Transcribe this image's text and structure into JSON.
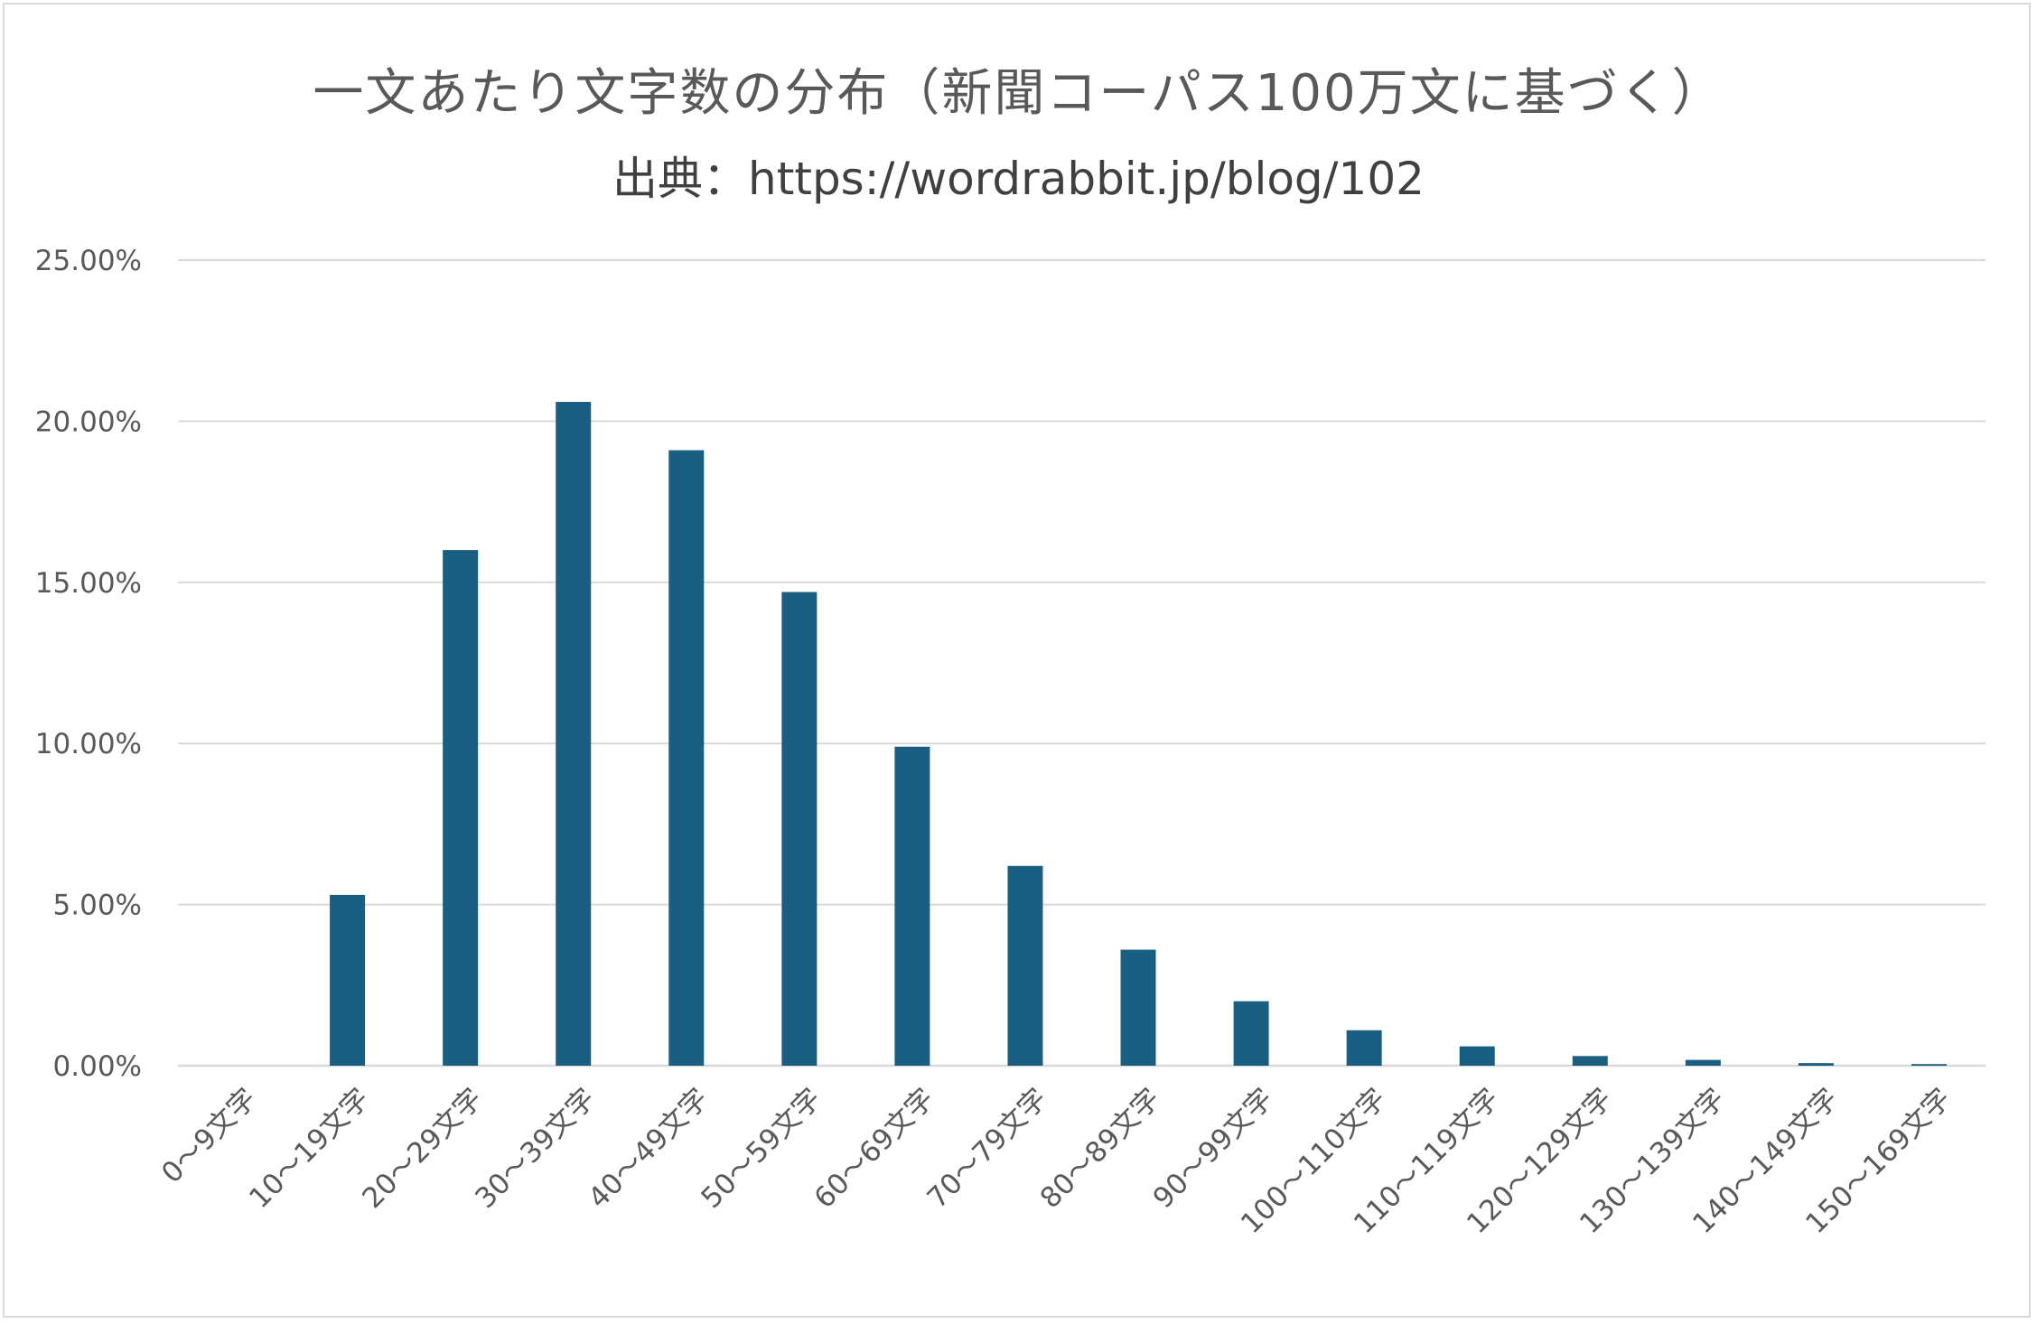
{
  "chart_data": {
    "type": "bar",
    "title": "一文あたり文字数の分布（新聞コーパス100万文に基づく）",
    "subtitle": "出典：https://wordrabbit.jp/blog/102",
    "categories": [
      "0〜9文字",
      "10〜19文字",
      "20〜29文字",
      "30〜39文字",
      "40〜49文字",
      "50〜59文字",
      "60〜69文字",
      "70〜79文字",
      "80〜89文字",
      "90〜99文字",
      "100〜110文字",
      "110〜119文字",
      "120〜129文字",
      "130〜139文字",
      "140〜149文字",
      "150〜169文字"
    ],
    "values": [
      0.0,
      5.3,
      16.0,
      20.6,
      19.1,
      14.7,
      9.9,
      6.2,
      3.6,
      2.0,
      1.1,
      0.6,
      0.3,
      0.18,
      0.08,
      0.05
    ],
    "y_ticks": [
      "0.00%",
      "5.00%",
      "10.00%",
      "15.00%",
      "20.00%",
      "25.00%"
    ],
    "ylim": [
      0,
      25
    ],
    "grid": true,
    "bar_color": "#1a5e82",
    "grid_color": "#d9d9d9"
  }
}
